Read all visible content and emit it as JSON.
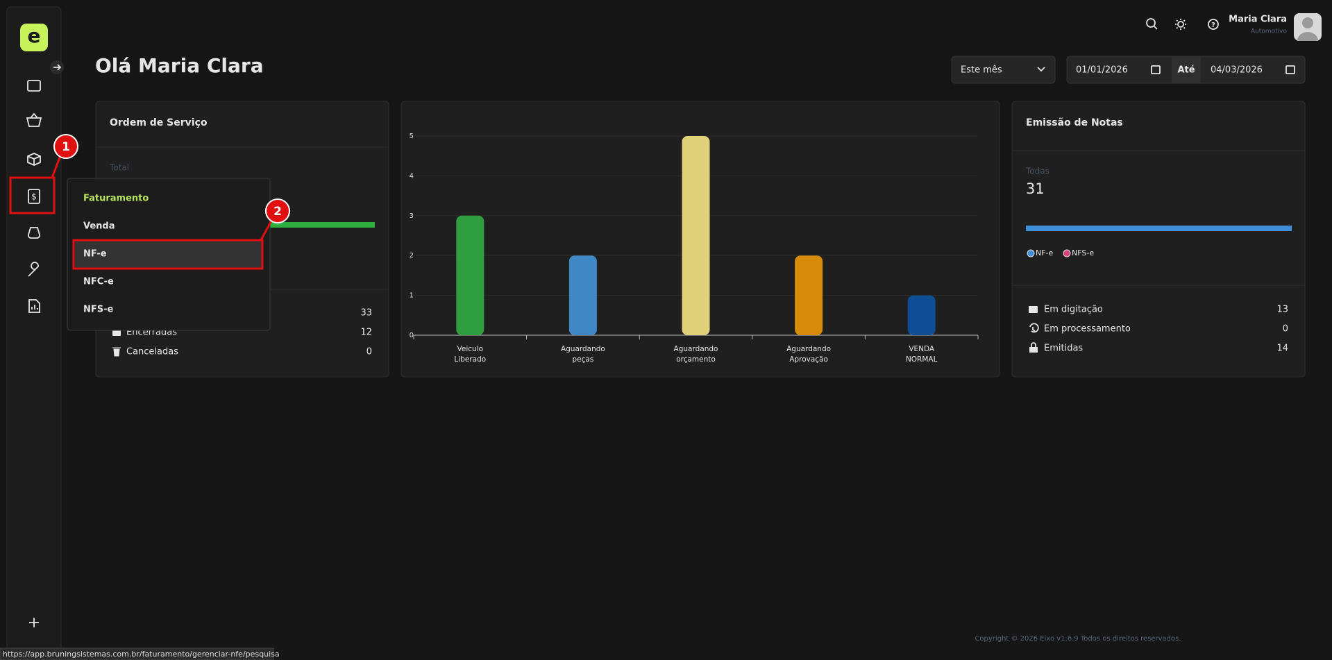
{
  "header": {
    "user_name": "Maria Clara",
    "user_role": "Automotivo"
  },
  "page_title": "Olá Maria Clara",
  "filters": {
    "period": "Este mês",
    "date_from": "01/01/2026",
    "until": "Até",
    "date_to": "04/03/2026"
  },
  "service_orders": {
    "title": "Ordem de Serviço",
    "total_label": "Total",
    "rows": [
      {
        "value": 33
      },
      {
        "label": "Encerradas",
        "value": 12
      },
      {
        "label": "Canceladas",
        "value": 0
      }
    ]
  },
  "menu": {
    "heading": "Faturamento",
    "items": [
      "Venda",
      "NF-e",
      "NFC-e",
      "NFS-e"
    ]
  },
  "annotations": [
    "1",
    "2"
  ],
  "chart_data": {
    "type": "bar",
    "categories": [
      "Veiculo Liberado",
      "Aguardando peças",
      "Aguardando orçamento",
      "Aguardando Aprovação",
      "VENDA NORMAL"
    ],
    "values": [
      3,
      2,
      5,
      2,
      1
    ],
    "colors": [
      "#2e9e3e",
      "#3f88c5",
      "#e0d07a",
      "#d68c0a",
      "#0d4d94"
    ],
    "ylim": [
      0,
      5
    ],
    "yticks": [
      0,
      1,
      2,
      3,
      4,
      5
    ],
    "grid": true
  },
  "invoices": {
    "title": "Emissão de Notas",
    "total_label": "Todas",
    "total": 31,
    "legend": [
      "NF-e",
      "NFS-e"
    ],
    "rows": [
      {
        "label": "Em digitação",
        "value": 13
      },
      {
        "label": "Em processamento",
        "value": 0
      },
      {
        "label": "Emitidas",
        "value": 14
      }
    ]
  },
  "footer": "Copyright © 2026 Eixo v1.6.9 Todos os direitos reservados.",
  "status_url": "https://app.bruningsistemas.com.br/faturamento/gerenciar-nfe/pesquisa"
}
